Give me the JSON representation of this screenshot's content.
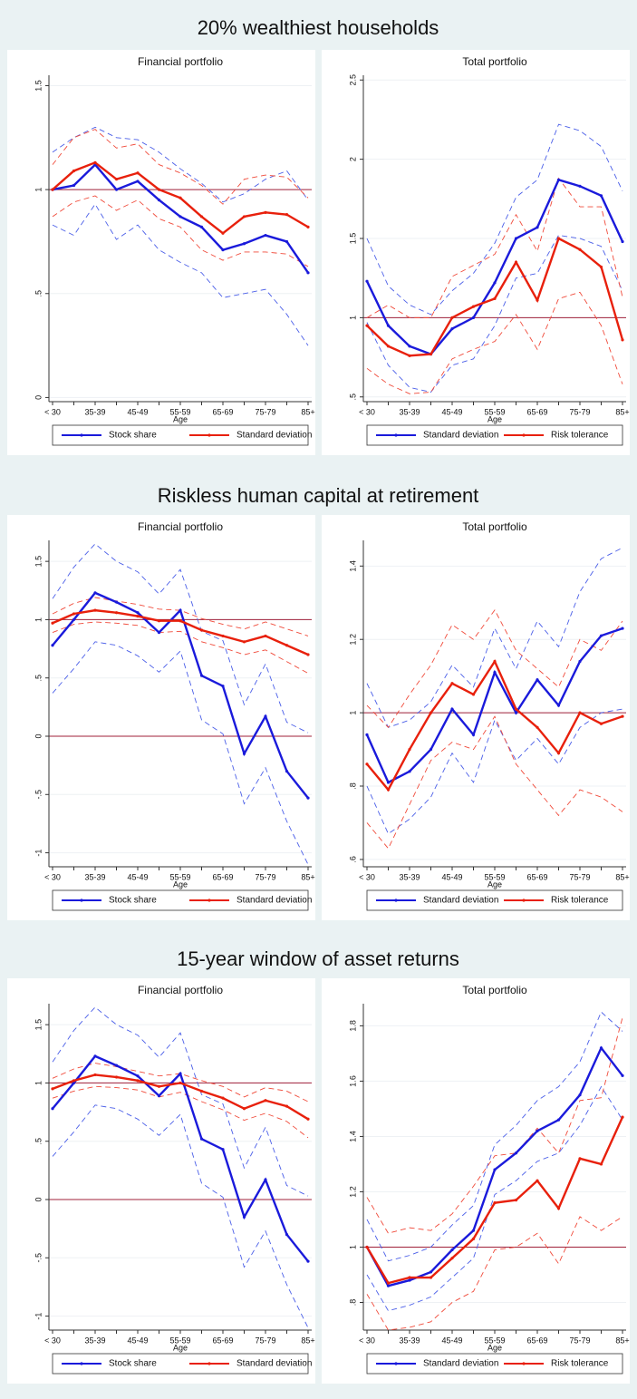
{
  "section_titles": [
    "20% wealthiest households",
    "Riskless human capital at retirement",
    "15-year window of asset returns"
  ],
  "chart_data": [
    {
      "type": "line",
      "title": "Financial portfolio",
      "xlabel": "Age",
      "categories": [
        "< 30",
        null,
        "35-39",
        null,
        "45-49",
        null,
        "55-59",
        null,
        "65-69",
        null,
        "75-79",
        null,
        "85+"
      ],
      "ylim": [
        -0.02,
        1.55
      ],
      "yticks": [
        0,
        {
          "value": 0.5,
          "label": ".5"
        },
        1,
        1.5
      ],
      "grid": true,
      "reference_lines": [
        1
      ],
      "reference_color": "#a0213a",
      "series": [
        {
          "name": "Stock share",
          "color": "#1a1adb",
          "markers": true,
          "values": [
            1.0,
            1.02,
            1.12,
            1.0,
            1.04,
            0.95,
            0.87,
            0.82,
            0.71,
            0.74,
            0.78,
            0.75,
            0.6
          ]
        },
        {
          "name": "Standard deviation",
          "color": "#e8200c",
          "markers": true,
          "values": [
            1.0,
            1.09,
            1.13,
            1.05,
            1.08,
            1.0,
            0.96,
            0.87,
            0.79,
            0.87,
            0.89,
            0.88,
            0.82
          ]
        },
        {
          "color": "#4a5ee8",
          "dash": true,
          "values": [
            1.18,
            1.25,
            1.3,
            1.25,
            1.24,
            1.18,
            1.1,
            1.03,
            0.94,
            0.98,
            1.05,
            1.09,
            0.95
          ]
        },
        {
          "color": "#4a5ee8",
          "dash": true,
          "values": [
            0.83,
            0.78,
            0.93,
            0.76,
            0.83,
            0.71,
            0.65,
            0.6,
            0.48,
            0.5,
            0.52,
            0.4,
            0.25
          ]
        },
        {
          "color": "#f04a3a",
          "dash": true,
          "values": [
            1.12,
            1.25,
            1.29,
            1.2,
            1.22,
            1.12,
            1.08,
            1.02,
            0.93,
            1.05,
            1.07,
            1.06,
            0.96
          ]
        },
        {
          "color": "#f04a3a",
          "dash": true,
          "values": [
            0.87,
            0.94,
            0.97,
            0.9,
            0.95,
            0.86,
            0.82,
            0.71,
            0.66,
            0.7,
            0.7,
            0.69,
            0.63
          ]
        }
      ]
    },
    {
      "type": "line",
      "title": "Total portfolio",
      "xlabel": "Age",
      "categories": [
        "< 30",
        null,
        "35-39",
        null,
        "45-49",
        null,
        "55-59",
        null,
        "65-69",
        null,
        "75-79",
        null,
        "85+"
      ],
      "ylim": [
        0.47,
        2.53
      ],
      "yticks": [
        {
          "value": 0.5,
          "label": ".5"
        },
        1,
        1.5,
        2,
        2.5
      ],
      "grid": true,
      "reference_lines": [
        1
      ],
      "reference_color": "#a0213a",
      "series": [
        {
          "name": "Standard deviation",
          "color": "#1a1adb",
          "markers": true,
          "values": [
            1.23,
            0.95,
            0.82,
            0.77,
            0.93,
            1.0,
            1.22,
            1.5,
            1.57,
            1.87,
            1.83,
            1.77,
            1.48
          ]
        },
        {
          "name": "Risk tolerance",
          "color": "#e8200c",
          "markers": true,
          "values": [
            0.95,
            0.82,
            0.76,
            0.77,
            1.0,
            1.07,
            1.12,
            1.35,
            1.11,
            1.5,
            1.43,
            1.32,
            0.86
          ]
        },
        {
          "color": "#4a5ee8",
          "dash": true,
          "values": [
            1.5,
            1.2,
            1.08,
            1.02,
            1.17,
            1.28,
            1.47,
            1.76,
            1.87,
            2.22,
            2.18,
            2.08,
            1.8
          ]
        },
        {
          "color": "#4a5ee8",
          "dash": true,
          "values": [
            0.97,
            0.7,
            0.56,
            0.53,
            0.7,
            0.74,
            0.95,
            1.25,
            1.28,
            1.52,
            1.5,
            1.45,
            1.17
          ]
        },
        {
          "color": "#f04a3a",
          "dash": true,
          "values": [
            1.0,
            1.08,
            1.0,
            1.0,
            1.26,
            1.33,
            1.4,
            1.65,
            1.42,
            1.88,
            1.7,
            1.7,
            1.13
          ]
        },
        {
          "color": "#f04a3a",
          "dash": true,
          "values": [
            0.68,
            0.58,
            0.52,
            0.53,
            0.74,
            0.8,
            0.85,
            1.02,
            0.8,
            1.12,
            1.16,
            0.95,
            0.58
          ]
        }
      ]
    },
    {
      "type": "line",
      "title": "Financial portfolio",
      "xlabel": "Age",
      "categories": [
        "< 30",
        null,
        "35-39",
        null,
        "45-49",
        null,
        "55-59",
        null,
        "65-69",
        null,
        "75-79",
        null,
        "85+"
      ],
      "ylim": [
        -1.12,
        1.68
      ],
      "yticks": [
        -1,
        {
          "value": -0.5,
          "label": "-.5"
        },
        0,
        {
          "value": 0.5,
          "label": ".5"
        },
        1,
        1.5
      ],
      "grid": true,
      "reference_lines": [
        0,
        1
      ],
      "reference_color": "#a0213a",
      "series": [
        {
          "name": "Stock share",
          "color": "#1a1adb",
          "markers": true,
          "values": [
            0.78,
            1.0,
            1.23,
            1.15,
            1.06,
            0.89,
            1.08,
            0.52,
            0.43,
            -0.15,
            0.17,
            -0.3,
            -0.53
          ]
        },
        {
          "name": "Standard deviation",
          "color": "#e8200c",
          "markers": true,
          "values": [
            0.97,
            1.05,
            1.08,
            1.06,
            1.03,
            0.99,
            0.99,
            0.91,
            0.86,
            0.81,
            0.86,
            0.78,
            0.7
          ]
        },
        {
          "color": "#4a5ee8",
          "dash": true,
          "values": [
            1.18,
            1.45,
            1.65,
            1.5,
            1.41,
            1.22,
            1.43,
            0.9,
            0.82,
            0.27,
            0.62,
            0.12,
            0.03
          ]
        },
        {
          "color": "#4a5ee8",
          "dash": true,
          "values": [
            0.37,
            0.58,
            0.81,
            0.78,
            0.69,
            0.55,
            0.73,
            0.14,
            0.02,
            -0.58,
            -0.27,
            -0.73,
            -1.1
          ]
        },
        {
          "color": "#f04a3a",
          "dash": true,
          "values": [
            1.05,
            1.14,
            1.19,
            1.16,
            1.13,
            1.09,
            1.08,
            1.01,
            0.96,
            0.92,
            0.98,
            0.92,
            0.86
          ]
        },
        {
          "color": "#f04a3a",
          "dash": true,
          "values": [
            0.89,
            0.96,
            0.98,
            0.97,
            0.95,
            0.89,
            0.9,
            0.81,
            0.76,
            0.7,
            0.74,
            0.64,
            0.54
          ]
        }
      ]
    },
    {
      "type": "line",
      "title": "Total portfolio",
      "xlabel": "Age",
      "categories": [
        "< 30",
        null,
        "35-39",
        null,
        "45-49",
        null,
        "55-59",
        null,
        "65-69",
        null,
        "75-79",
        null,
        "85+"
      ],
      "ylim": [
        0.58,
        1.47
      ],
      "yticks": [
        {
          "value": 0.6,
          "label": ".6"
        },
        {
          "value": 0.8,
          "label": ".8"
        },
        1,
        1.2,
        1.4
      ],
      "grid": true,
      "reference_lines": [
        1
      ],
      "reference_color": "#a0213a",
      "series": [
        {
          "name": "Standard deviation",
          "color": "#1a1adb",
          "markers": true,
          "values": [
            0.94,
            0.81,
            0.84,
            0.9,
            1.01,
            0.94,
            1.11,
            1.0,
            1.09,
            1.02,
            1.14,
            1.21,
            1.23
          ]
        },
        {
          "name": "Risk tolerance",
          "color": "#e8200c",
          "markers": true,
          "values": [
            0.86,
            0.79,
            0.9,
            1.0,
            1.08,
            1.05,
            1.14,
            1.01,
            0.96,
            0.89,
            1.0,
            0.97,
            0.99
          ]
        },
        {
          "color": "#4a5ee8",
          "dash": true,
          "values": [
            1.08,
            0.96,
            0.98,
            1.03,
            1.13,
            1.07,
            1.23,
            1.12,
            1.25,
            1.18,
            1.33,
            1.42,
            1.45
          ]
        },
        {
          "color": "#4a5ee8",
          "dash": true,
          "values": [
            0.8,
            0.67,
            0.71,
            0.77,
            0.89,
            0.81,
            0.98,
            0.87,
            0.93,
            0.86,
            0.96,
            1.0,
            1.01
          ]
        },
        {
          "color": "#f04a3a",
          "dash": true,
          "values": [
            1.02,
            0.96,
            1.05,
            1.13,
            1.24,
            1.2,
            1.28,
            1.17,
            1.12,
            1.07,
            1.2,
            1.17,
            1.25
          ]
        },
        {
          "color": "#f04a3a",
          "dash": true,
          "values": [
            0.7,
            0.63,
            0.75,
            0.87,
            0.92,
            0.9,
            0.99,
            0.86,
            0.79,
            0.72,
            0.79,
            0.77,
            0.73
          ]
        }
      ]
    },
    {
      "type": "line",
      "title": "Financial portfolio",
      "xlabel": "Age",
      "categories": [
        "< 30",
        null,
        "35-39",
        null,
        "45-49",
        null,
        "55-59",
        null,
        "65-69",
        null,
        "75-79",
        null,
        "85+"
      ],
      "ylim": [
        -1.12,
        1.68
      ],
      "yticks": [
        -1,
        {
          "value": -0.5,
          "label": "-.5"
        },
        0,
        {
          "value": 0.5,
          "label": ".5"
        },
        1,
        1.5
      ],
      "grid": true,
      "reference_lines": [
        0,
        1
      ],
      "reference_color": "#a0213a",
      "series": [
        {
          "name": "Stock share",
          "color": "#1a1adb",
          "markers": true,
          "values": [
            0.78,
            1.0,
            1.23,
            1.15,
            1.06,
            0.89,
            1.08,
            0.52,
            0.43,
            -0.15,
            0.17,
            -0.3,
            -0.53
          ]
        },
        {
          "name": "Standard deviation",
          "color": "#e8200c",
          "markers": true,
          "values": [
            0.95,
            1.02,
            1.07,
            1.05,
            1.02,
            0.97,
            1.0,
            0.93,
            0.87,
            0.78,
            0.85,
            0.8,
            0.69
          ]
        },
        {
          "color": "#4a5ee8",
          "dash": true,
          "values": [
            1.18,
            1.45,
            1.65,
            1.5,
            1.41,
            1.22,
            1.43,
            0.9,
            0.82,
            0.27,
            0.62,
            0.12,
            0.03
          ]
        },
        {
          "color": "#4a5ee8",
          "dash": true,
          "values": [
            0.37,
            0.58,
            0.81,
            0.78,
            0.69,
            0.55,
            0.73,
            0.14,
            0.02,
            -0.58,
            -0.27,
            -0.73,
            -1.1
          ]
        },
        {
          "color": "#f04a3a",
          "dash": true,
          "values": [
            1.04,
            1.12,
            1.17,
            1.14,
            1.1,
            1.06,
            1.08,
            1.02,
            0.97,
            0.88,
            0.96,
            0.93,
            0.84
          ]
        },
        {
          "color": "#f04a3a",
          "dash": true,
          "values": [
            0.87,
            0.93,
            0.97,
            0.96,
            0.94,
            0.88,
            0.92,
            0.84,
            0.77,
            0.68,
            0.74,
            0.67,
            0.53
          ]
        }
      ]
    },
    {
      "type": "line",
      "title": "Total portfolio",
      "xlabel": "Age",
      "categories": [
        "< 30",
        null,
        "35-39",
        null,
        "45-49",
        null,
        "55-59",
        null,
        "65-69",
        null,
        "75-79",
        null,
        "85+"
      ],
      "ylim": [
        0.7,
        1.88
      ],
      "yticks": [
        {
          "value": 0.8,
          "label": ".8"
        },
        1,
        1.2,
        1.4,
        1.6,
        1.8
      ],
      "grid": true,
      "reference_lines": [
        1
      ],
      "reference_color": "#a0213a",
      "series": [
        {
          "name": "Standard deviation",
          "color": "#1a1adb",
          "markers": true,
          "values": [
            1.0,
            0.86,
            0.88,
            0.91,
            0.99,
            1.06,
            1.28,
            1.34,
            1.42,
            1.46,
            1.55,
            1.72,
            1.62
          ]
        },
        {
          "name": "Risk tolerance",
          "color": "#e8200c",
          "markers": true,
          "values": [
            1.0,
            0.87,
            0.89,
            0.89,
            0.96,
            1.03,
            1.16,
            1.17,
            1.24,
            1.14,
            1.32,
            1.3,
            1.47
          ]
        },
        {
          "color": "#4a5ee8",
          "dash": true,
          "values": [
            1.1,
            0.95,
            0.97,
            1.0,
            1.08,
            1.15,
            1.37,
            1.44,
            1.53,
            1.58,
            1.67,
            1.85,
            1.78
          ]
        },
        {
          "color": "#4a5ee8",
          "dash": true,
          "values": [
            0.9,
            0.77,
            0.79,
            0.82,
            0.89,
            0.96,
            1.19,
            1.24,
            1.31,
            1.34,
            1.44,
            1.58,
            1.46
          ]
        },
        {
          "color": "#f04a3a",
          "dash": true,
          "values": [
            1.18,
            1.05,
            1.07,
            1.06,
            1.12,
            1.22,
            1.33,
            1.34,
            1.43,
            1.34,
            1.53,
            1.54,
            1.83
          ]
        },
        {
          "color": "#f04a3a",
          "dash": true,
          "values": [
            0.83,
            0.7,
            0.71,
            0.73,
            0.8,
            0.84,
            0.99,
            1.0,
            1.05,
            0.94,
            1.11,
            1.06,
            1.11
          ]
        }
      ]
    }
  ]
}
